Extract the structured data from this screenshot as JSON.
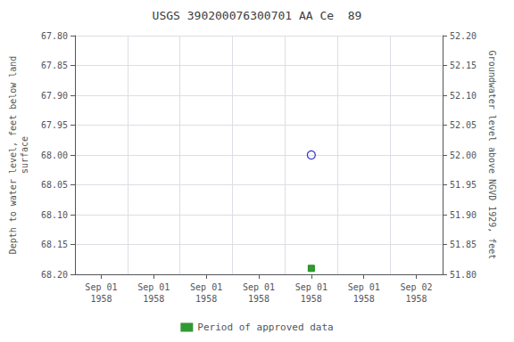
{
  "chart_data": {
    "type": "scatter",
    "title": "USGS 390200076300701 AA Ce  89",
    "y_label": "Depth to water level, feet below land\nsurface",
    "y2_label": "Groundwater level above NGVD 1929, feet",
    "categories": [
      "Sep 01\n1958",
      "Sep 01\n1958",
      "Sep 01\n1958",
      "Sep 01\n1958",
      "Sep 01\n1958",
      "Sep 01\n1958",
      "Sep 02\n1958"
    ],
    "series": [
      {
        "color": "#0000cc",
        "marker": "open_circle",
        "values": [
          null,
          null,
          null,
          null,
          68.0,
          null,
          null
        ]
      },
      {
        "name": "Period of approved data",
        "color": "#008000",
        "marker": "square",
        "values": [
          null,
          null,
          null,
          null,
          68.19,
          null,
          null
        ]
      }
    ],
    "ylim": [
      68.2,
      67.8
    ],
    "yticks": [
      {
        "value": 67.8,
        "label": "67.80"
      },
      {
        "value": 67.85,
        "label": "67.85"
      },
      {
        "value": 67.9,
        "label": "67.90"
      },
      {
        "value": 67.95,
        "label": "67.95"
      },
      {
        "value": 68.0,
        "label": "68.00"
      },
      {
        "value": 68.05,
        "label": "68.05"
      },
      {
        "value": 68.1,
        "label": "68.10"
      },
      {
        "value": 68.15,
        "label": "68.15"
      },
      {
        "value": 68.2,
        "label": "68.20"
      }
    ],
    "y2lim": [
      51.8,
      52.2
    ],
    "y2ticks": [
      {
        "value": 52.2,
        "label": "52.20"
      },
      {
        "value": 52.15,
        "label": "52.15"
      },
      {
        "value": 52.1,
        "label": "52.10"
      },
      {
        "value": 52.05,
        "label": "52.05"
      },
      {
        "value": 52.0,
        "label": "52.00"
      },
      {
        "value": 51.95,
        "label": "51.95"
      },
      {
        "value": 51.9,
        "label": "51.90"
      },
      {
        "value": 51.85,
        "label": "51.85"
      },
      {
        "value": 51.8,
        "label": "51.80"
      }
    ],
    "grid": true,
    "legend": "bottom"
  }
}
